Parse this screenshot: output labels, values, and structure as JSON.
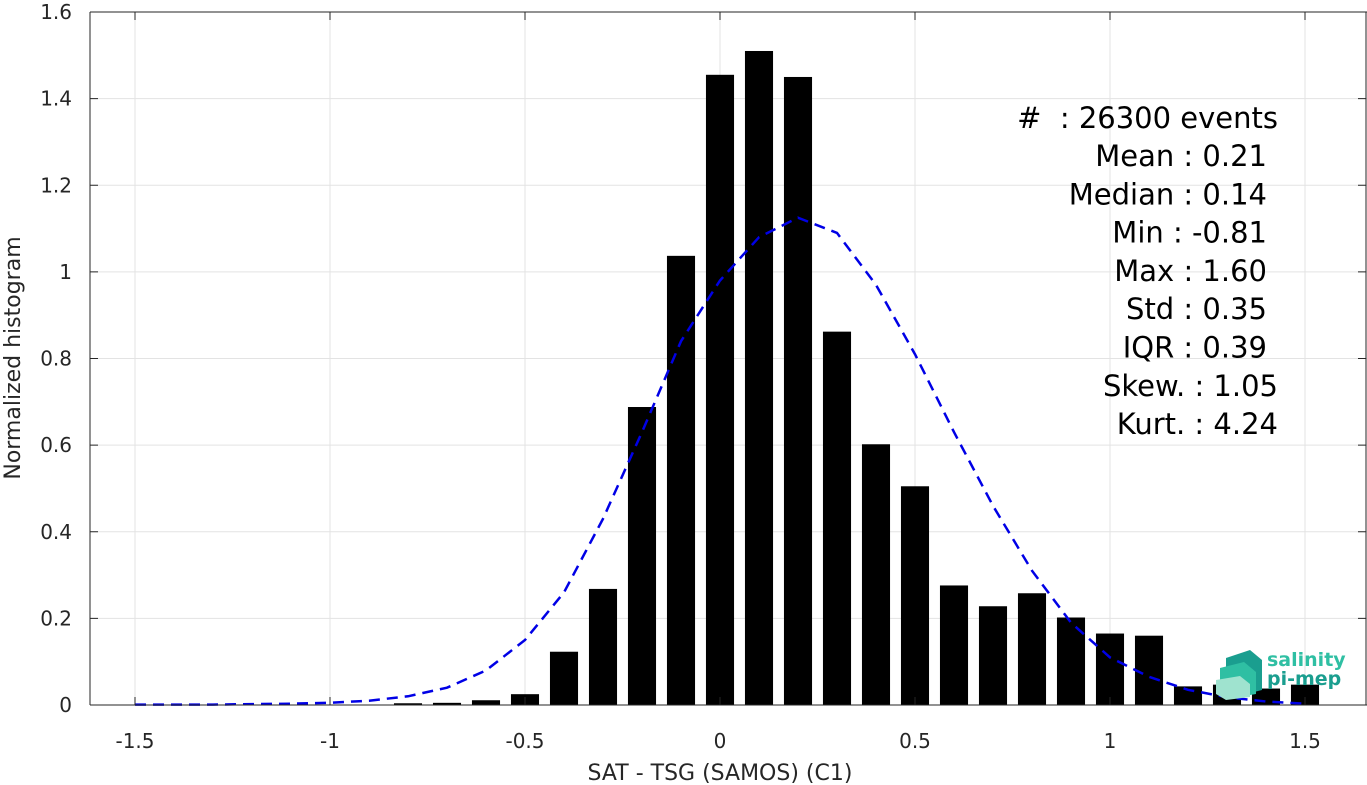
{
  "chart_data": {
    "type": "bar",
    "xlabel": "SAT - TSG (SAMOS) (C1)",
    "ylabel": "Normalized histogram",
    "xlim": [
      -1.5,
      1.5
    ],
    "ylim": [
      0,
      1.6
    ],
    "x_ticks": [
      -1.5,
      -1,
      -0.5,
      0,
      0.5,
      1,
      1.5
    ],
    "x_tick_labels": [
      "-1.5",
      "-1",
      "-0.5",
      "0",
      "0.5",
      "1",
      "1.5"
    ],
    "y_ticks": [
      0,
      0.2,
      0.4,
      0.6,
      0.8,
      1,
      1.2,
      1.4,
      1.6
    ],
    "y_tick_labels": [
      "0",
      "0.2",
      "0.4",
      "0.6",
      "0.8",
      "1",
      "1.2",
      "1.4",
      "1.6"
    ],
    "grid": true,
    "bar_color": "#000000",
    "fit_color": "#0000e6",
    "bars": {
      "bin_width": 0.1,
      "x": [
        -0.8,
        -0.7,
        -0.6,
        -0.5,
        -0.4,
        -0.3,
        -0.2,
        -0.1,
        0.0,
        0.1,
        0.2,
        0.3,
        0.4,
        0.5,
        0.6,
        0.7,
        0.8,
        0.9,
        1.0,
        1.1,
        1.2,
        1.3,
        1.4,
        1.5
      ],
      "values": [
        0.004,
        0.005,
        0.011,
        0.025,
        0.123,
        0.268,
        0.688,
        1.037,
        1.455,
        1.51,
        1.45,
        0.862,
        0.602,
        0.505,
        0.276,
        0.228,
        0.258,
        0.202,
        0.165,
        0.16,
        0.043,
        0.047,
        0.038,
        0.047
      ]
    },
    "fit_curve": {
      "style": "dashed",
      "x": [
        -1.5,
        -1.4,
        -1.3,
        -1.2,
        -1.1,
        -1.0,
        -0.9,
        -0.8,
        -0.7,
        -0.6,
        -0.5,
        -0.4,
        -0.3,
        -0.2,
        -0.1,
        0.0,
        0.1,
        0.2,
        0.3,
        0.4,
        0.5,
        0.6,
        0.7,
        0.8,
        0.9,
        1.0,
        1.1,
        1.2,
        1.3,
        1.4,
        1.5
      ],
      "y": [
        0.001,
        0.001,
        0.001,
        0.002,
        0.003,
        0.005,
        0.01,
        0.02,
        0.04,
        0.08,
        0.15,
        0.26,
        0.43,
        0.63,
        0.84,
        0.98,
        1.08,
        1.125,
        1.09,
        0.97,
        0.81,
        0.63,
        0.46,
        0.31,
        0.19,
        0.11,
        0.065,
        0.035,
        0.018,
        0.008,
        0.003
      ]
    },
    "stats": {
      "count_line": "#  : 26300 events",
      "lines": [
        {
          "label": "Mean",
          "value": "0.21"
        },
        {
          "label": "Median",
          "value": "0.14"
        },
        {
          "label": "Min",
          "value": "-0.81"
        },
        {
          "label": "Max",
          "value": "1.60"
        },
        {
          "label": "Std",
          "value": "0.35"
        },
        {
          "label": "IQR",
          "value": "0.39"
        },
        {
          "label": "Skew.",
          "value": "1.05"
        },
        {
          "label": "Kurt.",
          "value": "4.24"
        }
      ]
    }
  },
  "logo": {
    "line1": "salinity",
    "line2": "pi-mep",
    "colors": [
      "#1a9e8f",
      "#2fbfa3",
      "#6fd3b8",
      "#9fe3cf"
    ]
  }
}
